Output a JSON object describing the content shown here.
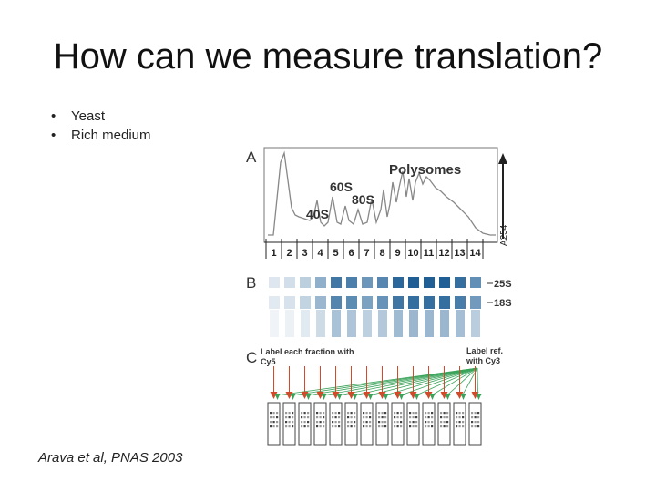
{
  "slide": {
    "title": "How can we measure translation?",
    "bullets": [
      "Yeast",
      "Rich medium"
    ],
    "citation": "Arava et al, PNAS 2003"
  },
  "figure": {
    "panels": [
      "A",
      "B",
      "C"
    ],
    "panel_a": {
      "title": "Polysomes",
      "peaks": [
        "60S",
        "80S",
        "40S"
      ],
      "axis_label": "A254",
      "fractions": [
        "1",
        "2",
        "3",
        "4",
        "5",
        "6",
        "7",
        "8",
        "9",
        "10",
        "11",
        "12",
        "13",
        "14"
      ]
    },
    "panel_b": {
      "bands": [
        "25S",
        "18S"
      ]
    },
    "panel_c": {
      "label_left_1": "Label each fraction with",
      "label_left_2": "Cy5",
      "label_right_1": "Label ref.",
      "label_right_2": "with Cy3"
    },
    "colors": {
      "trace": "#888888",
      "gel": "#1f5f95",
      "arrow_red": "#d24a2a",
      "arrow_green": "#3aa35a"
    }
  }
}
